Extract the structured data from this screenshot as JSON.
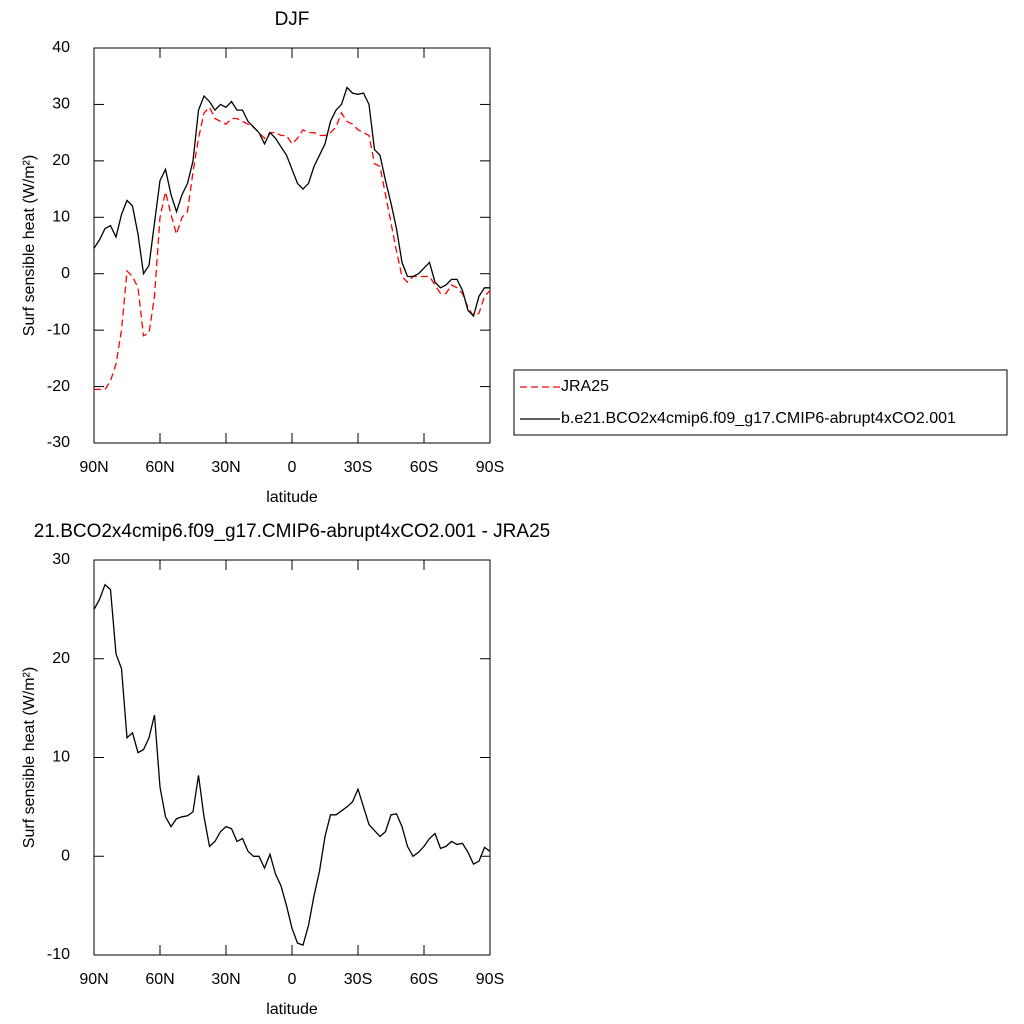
{
  "chart_data": [
    {
      "type": "line",
      "title": "DJF",
      "xlabel": "latitude",
      "ylabel": "Surf sensible heat (W/m²)",
      "x": [
        90,
        87.5,
        85,
        82.5,
        80,
        77.5,
        75,
        72.5,
        70,
        67.5,
        65,
        62.5,
        60,
        57.5,
        55,
        52.5,
        50,
        47.5,
        45,
        42.5,
        40,
        37.5,
        35,
        32.5,
        30,
        27.5,
        25,
        22.5,
        20,
        17.5,
        15,
        12.5,
        10,
        7.5,
        5,
        2.5,
        0,
        -2.5,
        -5,
        -7.5,
        -10,
        -12.5,
        -15,
        -17.5,
        -20,
        -22.5,
        -25,
        -27.5,
        -30,
        -32.5,
        -35,
        -37.5,
        -40,
        -42.5,
        -45,
        -47.5,
        -50,
        -52.5,
        -55,
        -57.5,
        -60,
        -62.5,
        -65,
        -67.5,
        -70,
        -72.5,
        -75,
        -77.5,
        -80,
        -82.5,
        -85,
        -87.5,
        -90
      ],
      "xlim": [
        90,
        -90
      ],
      "xticks": [
        {
          "value": 90,
          "label": "90N"
        },
        {
          "value": 60,
          "label": "60N"
        },
        {
          "value": 30,
          "label": "30N"
        },
        0,
        {
          "value": -30,
          "label": "30S"
        },
        {
          "value": -60,
          "label": "60S"
        },
        {
          "value": -90,
          "label": "90S"
        }
      ],
      "ylim": [
        -30,
        40
      ],
      "yticks": [
        -30,
        -20,
        -10,
        0,
        10,
        20,
        30,
        40
      ],
      "legend": "right",
      "series": [
        {
          "name": "JRA25",
          "color": "#ff0000",
          "dashed": true,
          "values": [
            -20.5,
            -20.5,
            -20.5,
            -19,
            -16,
            -10,
            0.5,
            -0.5,
            -2.5,
            -11,
            -10.5,
            -4,
            10,
            14.5,
            10.5,
            7,
            10,
            11,
            18,
            24,
            28.5,
            29.5,
            27.5,
            27,
            26.5,
            27.5,
            27.5,
            27,
            26.5,
            26,
            25,
            24,
            25,
            25,
            24.5,
            24.5,
            23,
            24,
            25.5,
            25,
            25,
            24.5,
            24.5,
            25,
            26,
            28.5,
            27,
            26.5,
            25.5,
            25,
            24.5,
            19.5,
            19,
            14,
            9,
            4,
            -0.5,
            -1.5,
            -0.5,
            -0.5,
            -0.5,
            -0.5,
            -2,
            -3.5,
            -3.5,
            -2,
            -2.5,
            -3.5,
            -6,
            -7.5,
            -7,
            -4,
            -3
          ]
        },
        {
          "name": "b.e21.BCO2x4cmip6.f09_g17.CMIP6-abrupt4xCO2.001",
          "color": "#000000",
          "dashed": false,
          "values": [
            4.5,
            6,
            8,
            8.5,
            6.5,
            10.5,
            13,
            12,
            7,
            0,
            1.5,
            9,
            16.5,
            18.5,
            14,
            11,
            14,
            16,
            20,
            29,
            31.5,
            30.5,
            29,
            30,
            29.5,
            30.5,
            29,
            29,
            27,
            26,
            25,
            23,
            25,
            24,
            22.5,
            21,
            18.5,
            16,
            15,
            16,
            19,
            21,
            23,
            27,
            29,
            30,
            33,
            32,
            31.8,
            32,
            30,
            22,
            21,
            16.5,
            12.5,
            8,
            2,
            -0.5,
            -0.5,
            0,
            1,
            2,
            -1.5,
            -2.5,
            -2,
            -1,
            -1,
            -3,
            -6.5,
            -7.5,
            -4,
            -2.5,
            -2.5
          ]
        }
      ]
    },
    {
      "type": "line",
      "title": "21.BCO2x4cmip6.f09_g17.CMIP6-abrupt4xCO2.001 - JRA25",
      "xlabel": "latitude",
      "ylabel": "Surf sensible heat (W/m²)",
      "x": [
        90,
        87.5,
        85,
        82.5,
        80,
        77.5,
        75,
        72.5,
        70,
        67.5,
        65,
        62.5,
        60,
        57.5,
        55,
        52.5,
        50,
        47.5,
        45,
        42.5,
        40,
        37.5,
        35,
        32.5,
        30,
        27.5,
        25,
        22.5,
        20,
        17.5,
        15,
        12.5,
        10,
        7.5,
        5,
        2.5,
        0,
        -2.5,
        -5,
        -7.5,
        -10,
        -12.5,
        -15,
        -17.5,
        -20,
        -22.5,
        -25,
        -27.5,
        -30,
        -32.5,
        -35,
        -37.5,
        -40,
        -42.5,
        -45,
        -47.5,
        -50,
        -52.5,
        -55,
        -57.5,
        -60,
        -62.5,
        -65,
        -67.5,
        -70,
        -72.5,
        -75,
        -77.5,
        -80,
        -82.5,
        -85,
        -87.5,
        -90
      ],
      "xlim": [
        90,
        -90
      ],
      "xticks": [
        {
          "value": 90,
          "label": "90N"
        },
        {
          "value": 60,
          "label": "60N"
        },
        {
          "value": 30,
          "label": "30N"
        },
        0,
        {
          "value": -30,
          "label": "30S"
        },
        {
          "value": -60,
          "label": "60S"
        },
        {
          "value": -90,
          "label": "90S"
        }
      ],
      "ylim": [
        -10,
        30
      ],
      "yticks": [
        -10,
        0,
        10,
        20,
        30
      ],
      "series": [
        {
          "color": "#000000",
          "dashed": false,
          "values": [
            25,
            26,
            27.5,
            27,
            20.5,
            19,
            12,
            12.5,
            10.5,
            10.8,
            12,
            14.3,
            7,
            4,
            3,
            3.8,
            4,
            4.1,
            4.5,
            8.2,
            4,
            1,
            1.5,
            2.5,
            3,
            2.8,
            1.5,
            1.8,
            0.5,
            0,
            0,
            -1.2,
            0.2,
            -1.8,
            -3,
            -5,
            -7.3,
            -8.8,
            -9,
            -7,
            -4,
            -1.5,
            2,
            4.2,
            4.2,
            4.6,
            5,
            5.5,
            6.8,
            5,
            3.2,
            2.6,
            2,
            2.5,
            4.2,
            4.3,
            3,
            1,
            0,
            0.4,
            1,
            1.8,
            2.3,
            0.8,
            1,
            1.5,
            1.2,
            1.3,
            0.4,
            -0.8,
            -0.5,
            0.9,
            0.5
          ]
        }
      ]
    }
  ]
}
